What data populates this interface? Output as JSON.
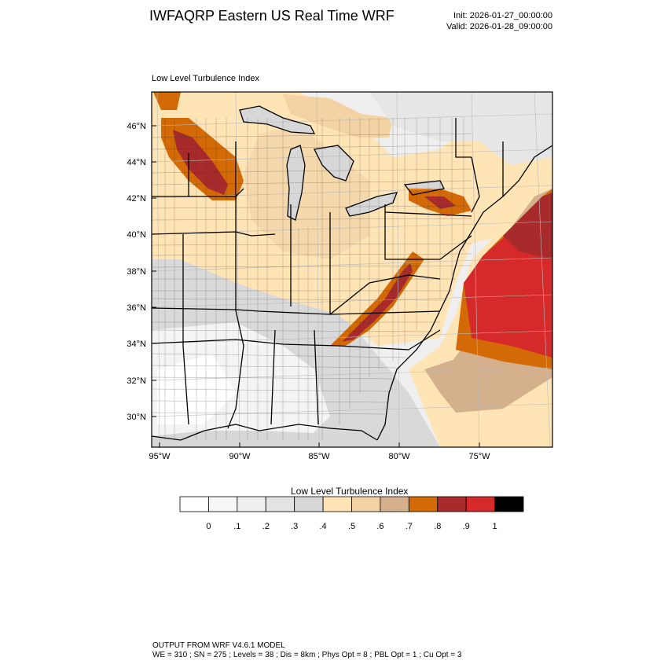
{
  "header": {
    "title": "IWFAQRP Eastern US Real Time WRF",
    "init": "Init: 2026-01-27_00:00:00",
    "valid": "Valid: 2026-01-28_09:00:00"
  },
  "plot": {
    "title": "Low Level Turbulence Index",
    "lat_labels": [
      "46°N",
      "44°N",
      "42°N",
      "40°N",
      "38°N",
      "36°N",
      "34°N",
      "32°N",
      "30°N"
    ],
    "lon_labels": [
      "95°W",
      "90°W",
      "85°W",
      "80°W",
      "75°W"
    ]
  },
  "colorbar": {
    "title": "Low Level Turbulence Index",
    "labels": [
      "0",
      ".1",
      ".2",
      ".3",
      ".4",
      ".5",
      ".6",
      ".7",
      ".8",
      ".9",
      "1"
    ],
    "colors": [
      "#ffffff",
      "#f7f7f7",
      "#efefef",
      "#e3e3e3",
      "#d7d7d7",
      "#ffe4b5",
      "#f3d2a3",
      "#d5b08c",
      "#d36a05",
      "#a82a2a",
      "#d62a2a",
      "#000000"
    ]
  },
  "footer": {
    "line1": "OUTPUT FROM WRF V4.6.1 MODEL",
    "line2": "WE = 310 ; SN = 275 ; Levels = 38 ; Dis = 8km ; Phys Opt = 8 ; PBL Opt = 1 ; Cu Opt = 3"
  }
}
